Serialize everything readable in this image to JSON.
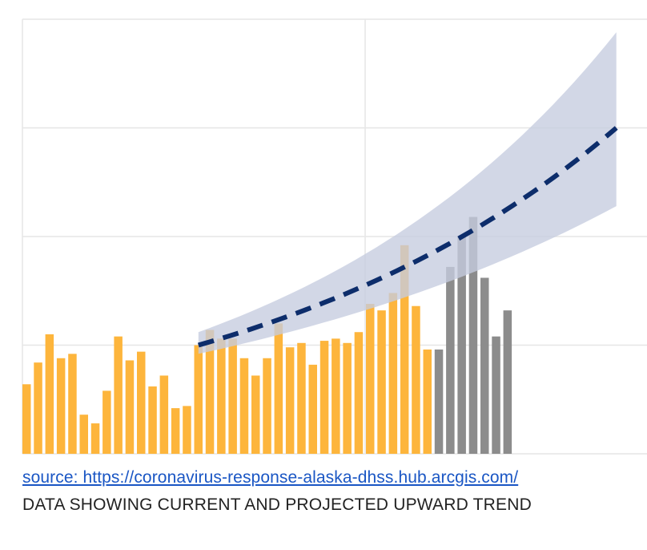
{
  "chart_data": {
    "type": "bar",
    "ylim": [
      0,
      100
    ],
    "grid": true,
    "colors": {
      "current": "#fdb53c",
      "recent": "#8c8c8c",
      "trend": "#0d2d6b",
      "band": "#c5ccdf",
      "grid": "#e6e6e6"
    },
    "series": [
      {
        "group": "current",
        "values": [
          16,
          21,
          27.5,
          22,
          23,
          9,
          7,
          14.5,
          27,
          21.5,
          23.5,
          15.5,
          18,
          10.5,
          11,
          25,
          28.5,
          26.5,
          26.5,
          22,
          18,
          22,
          30,
          24.5,
          25.5,
          20.5,
          26,
          26.5,
          25.5,
          28,
          34.5,
          33,
          37,
          48,
          34,
          24
        ]
      },
      {
        "group": "recent",
        "values": [
          24,
          43,
          50,
          54.5,
          40.5,
          27,
          33
        ]
      }
    ],
    "trend": {
      "x_start": 15,
      "x_end": 51.5,
      "mid": [
        25,
        75
      ],
      "lower": [
        23,
        57
      ],
      "upper": [
        28,
        97
      ]
    }
  },
  "footer": {
    "source": "source: https://coronavirus-response-alaska-dhss.hub.arcgis.com/",
    "caption": "DATA SHOWING CURRENT AND PROJECTED UPWARD TREND"
  }
}
